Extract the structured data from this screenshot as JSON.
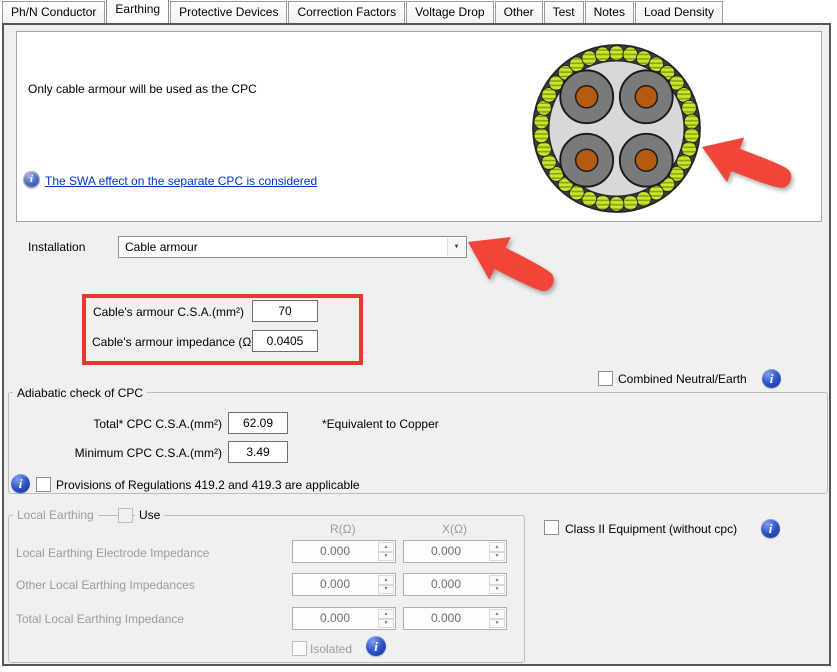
{
  "tabs": [
    {
      "label": "Ph/N Conductor",
      "active": false
    },
    {
      "label": "Earthing",
      "active": true
    },
    {
      "label": "Protective Devices",
      "active": false
    },
    {
      "label": "Correction Factors",
      "active": false
    },
    {
      "label": "Voltage Drop",
      "active": false
    },
    {
      "label": "Other",
      "active": false
    },
    {
      "label": "Test",
      "active": false
    },
    {
      "label": "Notes",
      "active": false
    },
    {
      "label": "Load Density",
      "active": false
    }
  ],
  "info_panel": {
    "message": "Only cable armour will be used as the CPC",
    "swa_link": "The SWA effect on the separate CPC is considered"
  },
  "installation": {
    "label": "Installation",
    "value": "Cable armour"
  },
  "armour_box": {
    "csa_label": "Cable's armour C.S.A.(mm²)",
    "csa_value": "70",
    "impedance_label": "Cable's armour impedance (Ω)",
    "impedance_value": "0.0405"
  },
  "combined_neutral_earth": {
    "label": "Combined Neutral/Earth"
  },
  "adiabatic": {
    "title": "Adiabatic check of CPC",
    "total_label": "Total* CPC C.S.A.(mm²)",
    "total_value": "62.09",
    "equivalent_note": "*Equivalent to Copper",
    "minimum_label": "Minimum CPC C.S.A.(mm²)",
    "minimum_value": "3.49",
    "provisions_label": "Provisions of Regulations 419.2 and 419.3 are applicable"
  },
  "local_earthing": {
    "title": "Local Earthing",
    "use_label": "Use",
    "col_r": "R(Ω)",
    "col_x": "X(Ω)",
    "rows": [
      {
        "label": "Local Earthing Electrode Impedance",
        "r": "0.000",
        "x": "0.000"
      },
      {
        "label": "Other Local Earthing Impedances",
        "r": "0.000",
        "x": "0.000"
      },
      {
        "label": "Total Local Earthing Impedance",
        "r": "0.000",
        "x": "0.000"
      }
    ],
    "isolated_label": "Isolated"
  },
  "class2": {
    "label": "Class II Equipment (without cpc)"
  },
  "colors": {
    "annotation_red": "#e8382e",
    "arrow_red": "#f2453a",
    "info_blue": "#2d56c9",
    "link_blue": "#0033cc",
    "armour_bead_green": "#cbe62c",
    "conductor_orange": "#b45b10"
  }
}
